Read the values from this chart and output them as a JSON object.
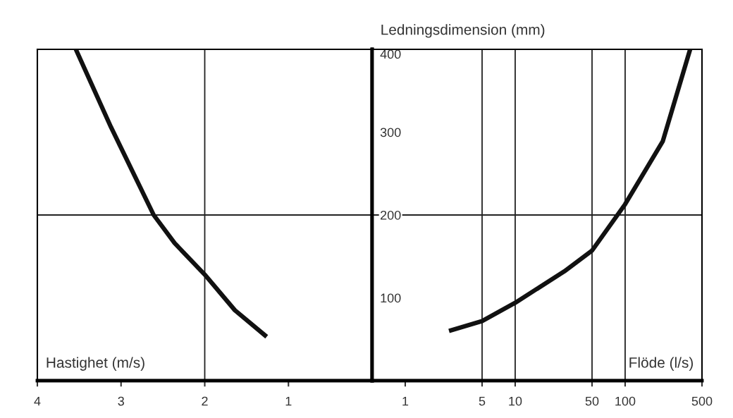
{
  "chart_data": [
    {
      "type": "line",
      "xlabel": "Hastighet (m/s)",
      "x": [
        3.54,
        3.12,
        2.61,
        2.36,
        2.0,
        1.64,
        1.26
      ],
      "series": [
        {
          "color": "#111111",
          "values": [
            400,
            306,
            200,
            166,
            128,
            85,
            53
          ]
        }
      ],
      "xlim": [
        4,
        0
      ],
      "xticks": [
        4,
        3,
        2,
        1
      ],
      "ylim": [
        0,
        400
      ],
      "tick_labels": "x",
      "marker": "none",
      "line_style": "solid",
      "ref_lines": [
        {
          "axis": "x",
          "value": 2,
          "color": "#222222"
        },
        {
          "axis": "y",
          "value": 200,
          "color": "#222222"
        }
      ]
    },
    {
      "type": "line",
      "xlabel": "Flöde (l/s)",
      "ylabel": "Ledningsdimension (mm)",
      "x": [
        2.5,
        5,
        10,
        28,
        50,
        100,
        220,
        390
      ],
      "series": [
        {
          "color": "#111111",
          "values": [
            60,
            72,
            94,
            132,
            157,
            213,
            289,
            400
          ]
        }
      ],
      "xlim": [
        0.5,
        500
      ],
      "xticks": [
        1,
        5,
        10,
        50,
        100,
        500
      ],
      "ylim": [
        0,
        400
      ],
      "yticks": [
        100,
        200,
        300,
        400
      ],
      "log": "x",
      "marker": "none",
      "line_style": "solid",
      "ref_lines": [
        {
          "axis": "x",
          "value": 5,
          "color": "#222222"
        },
        {
          "axis": "x",
          "value": 10,
          "color": "#222222"
        },
        {
          "axis": "x",
          "value": 50,
          "color": "#222222"
        },
        {
          "axis": "x",
          "value": 100,
          "color": "#222222"
        },
        {
          "axis": "y",
          "value": 200,
          "color": "#222222"
        }
      ]
    }
  ]
}
